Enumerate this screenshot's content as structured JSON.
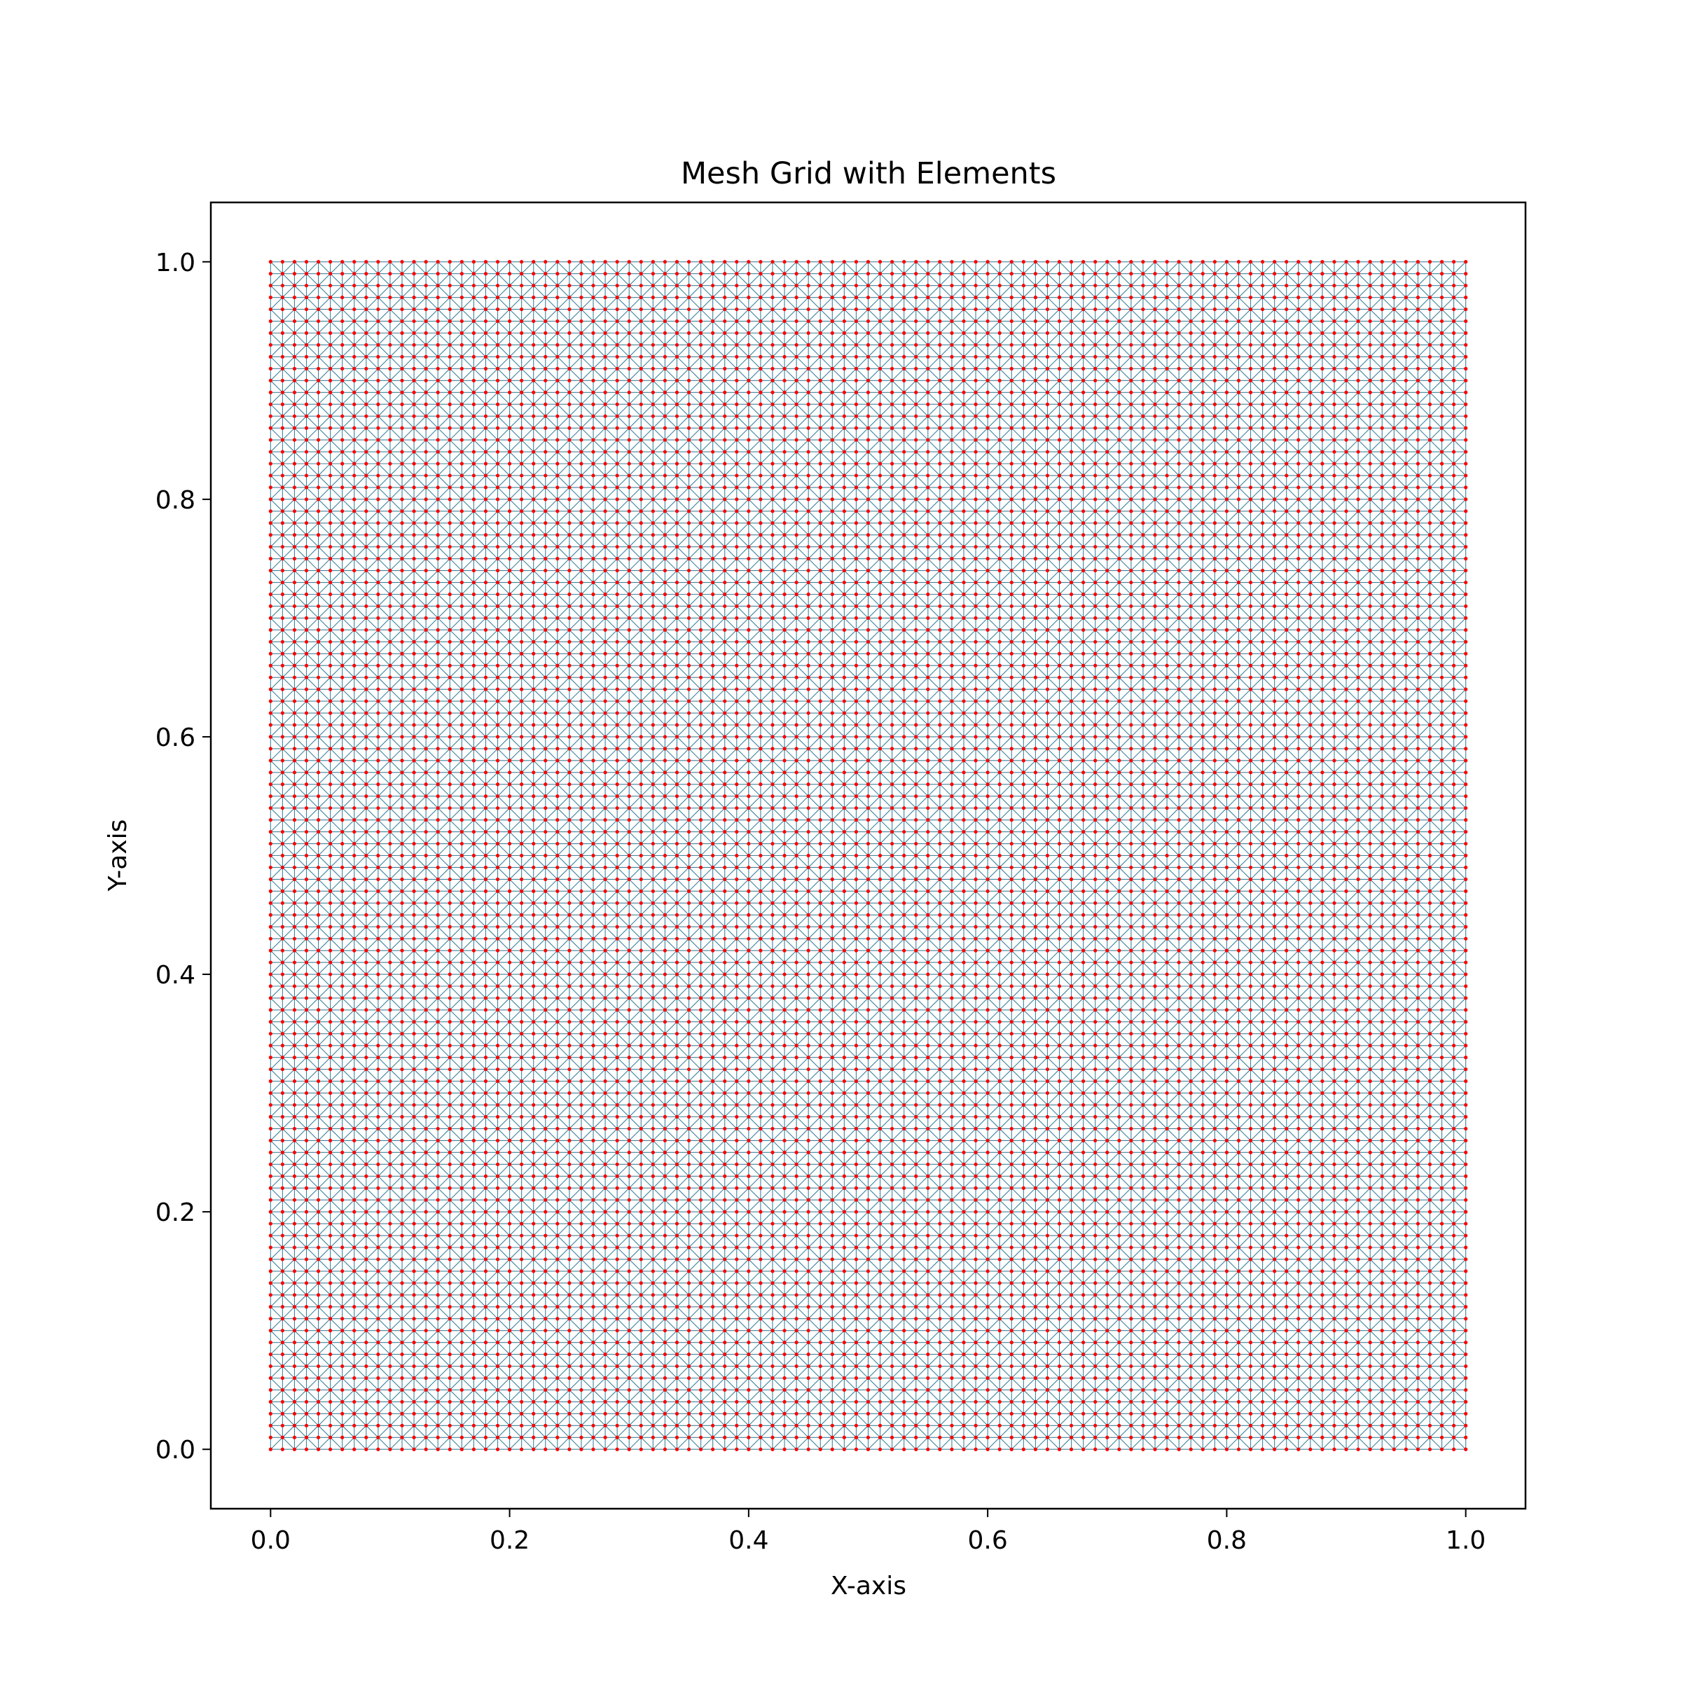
{
  "chart_data": {
    "type": "scatter",
    "title": "Mesh Grid with Elements",
    "xlabel": "X-axis",
    "ylabel": "Y-axis",
    "xlim": [
      -0.05,
      1.05
    ],
    "ylim": [
      -0.05,
      1.05
    ],
    "x_ticks": [
      0.0,
      0.2,
      0.4,
      0.6,
      0.8,
      1.0
    ],
    "y_ticks": [
      0.0,
      0.2,
      0.4,
      0.6,
      0.8,
      1.0
    ],
    "x_tick_labels": [
      "0.0",
      "0.2",
      "0.4",
      "0.6",
      "0.8",
      "1.0"
    ],
    "y_tick_labels": [
      "0.0",
      "0.2",
      "0.4",
      "0.6",
      "0.8",
      "1.0"
    ],
    "grid": false,
    "legend": "none",
    "mesh": {
      "x_range": [
        0.0,
        1.0
      ],
      "y_range": [
        0.0,
        1.0
      ],
      "divisions": 100,
      "element_type": "triangle",
      "node_color": "#ff0000",
      "edge_color": "#1f6f8b"
    }
  }
}
